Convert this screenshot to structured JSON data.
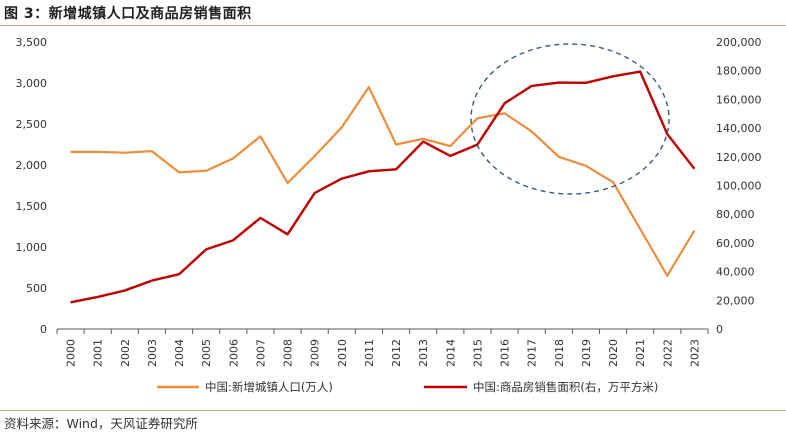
{
  "title": "图 3：新增城镇人口及商品房销售面积",
  "source": "资料来源：Wind，天风证券研究所",
  "colors": {
    "series1": "#ee8d3c",
    "series2": "#c00000",
    "ellipse": "#3a5a80",
    "rule": "#c9a87c"
  },
  "chart_data": {
    "type": "line",
    "x": [
      "2000",
      "2001",
      "2002",
      "2003",
      "2004",
      "2005",
      "2006",
      "2007",
      "2008",
      "2009",
      "2010",
      "2011",
      "2012",
      "2013",
      "2014",
      "2015",
      "2016",
      "2017",
      "2018",
      "2019",
      "2020",
      "2021",
      "2022",
      "2023"
    ],
    "series": [
      {
        "name": "中国:新增城镇人口(万人)",
        "axis": "left",
        "values": [
          2160,
          2160,
          2150,
          2170,
          1910,
          1930,
          2080,
          2350,
          1780,
          2110,
          2460,
          2950,
          2250,
          2320,
          2230,
          2570,
          2630,
          2410,
          2100,
          1990,
          1790,
          1220,
          650,
          1200
        ]
      },
      {
        "name": "中国:商品房销售面积(右，万平方米)",
        "axis": "right",
        "values": [
          18600,
          22400,
          26800,
          33700,
          38200,
          55500,
          61900,
          77400,
          66000,
          94800,
          104800,
          109900,
          111300,
          130600,
          120600,
          128500,
          157300,
          169400,
          171700,
          171600,
          176100,
          179400,
          135800,
          111700
        ]
      }
    ],
    "y_left": {
      "ylim": [
        0,
        3500
      ],
      "ticks": [
        "0",
        "500",
        "1,000",
        "1,500",
        "2,000",
        "2,500",
        "3,000",
        "3,500"
      ]
    },
    "y_right": {
      "ylim": [
        0,
        200000
      ],
      "ticks": [
        "0",
        "20,000",
        "40,000",
        "60,000",
        "80,000",
        "100,000",
        "120,000",
        "140,000",
        "160,000",
        "180,000",
        "200,000"
      ]
    },
    "annotation": "dashed ellipse highlighting 2015-2021",
    "grid": false,
    "legend": "bottom"
  }
}
